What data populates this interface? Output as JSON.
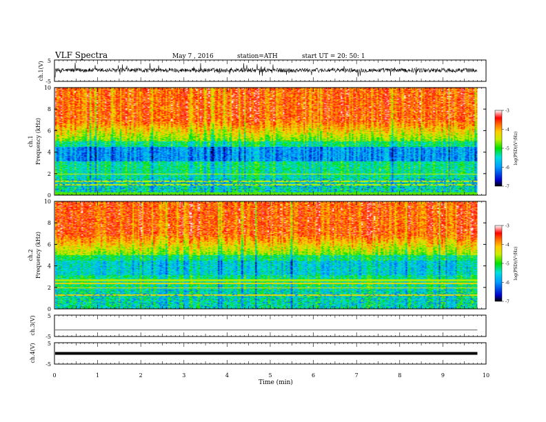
{
  "header": {
    "title": "VLF  Spectra",
    "date": "May 7  , 2016",
    "station": "station=ATH",
    "start": "start  UT  =    20: 50: 1"
  },
  "chart_data": [
    {
      "type": "line",
      "ylabel": "ch.1(V)",
      "ylim": [
        -5,
        5
      ],
      "y_ticks": [
        "5",
        "-5"
      ],
      "level": 0.2,
      "noise_amplitude": 1.0
    },
    {
      "type": "heatmap",
      "ylabel_channel": "ch.1",
      "ylabel": "Frequency  (kHz)",
      "ylim": [
        0,
        10
      ],
      "y_ticks": [
        "0",
        "2",
        "4",
        "6",
        "8",
        "10"
      ],
      "colorbar": {
        "label": "log(PSD)(V²/Hz)",
        "ticks": [
          "-3",
          "-4",
          "-5",
          "-6",
          "-7"
        ],
        "range": [
          -7,
          -3
        ]
      }
    },
    {
      "type": "heatmap",
      "ylabel_channel": "ch.2",
      "ylabel": "Frequency  (kHz)",
      "ylim": [
        0,
        10
      ],
      "y_ticks": [
        "0",
        "2",
        "4",
        "6",
        "8",
        "10"
      ],
      "colorbar": {
        "label": "log(PSD)(V²/Hz)",
        "ticks": [
          "-3",
          "-4",
          "-5",
          "-6",
          "-7"
        ],
        "range": [
          -7,
          -3
        ]
      }
    },
    {
      "type": "line",
      "ylabel": "ch.3(V)",
      "ylim": [
        -5,
        5
      ],
      "y_ticks": [
        "5",
        "-5"
      ],
      "level": -2,
      "noise_amplitude": 0
    },
    {
      "type": "line",
      "ylabel": "ch.4(V)",
      "ylim": [
        -5,
        5
      ],
      "y_ticks": [
        "5",
        "-5"
      ],
      "level": 0,
      "noise_amplitude": 0
    }
  ],
  "x_axis": {
    "label": "Time  (min)",
    "xlim": [
      0,
      10
    ],
    "ticks": [
      "0",
      "1",
      "2",
      "3",
      "4",
      "5",
      "6",
      "7",
      "8",
      "9",
      "10"
    ],
    "data_end": 9.8
  }
}
